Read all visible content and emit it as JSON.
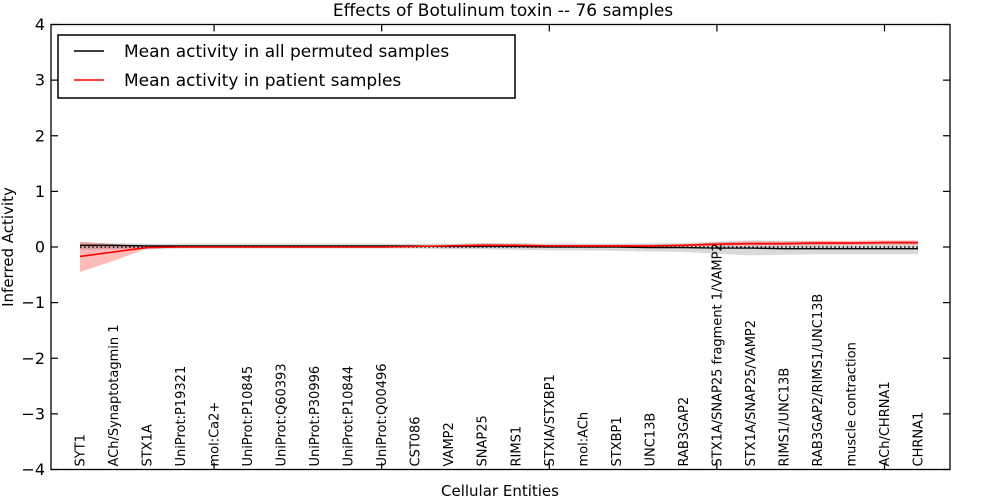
{
  "title": "Effects of Botulinum toxin -- 76 samples",
  "legend": {
    "items": [
      {
        "label": "Mean activity in all permuted samples",
        "color": "#000000"
      },
      {
        "label": "Mean activity in patient samples",
        "color": "#ff0000"
      }
    ]
  },
  "chart_data": {
    "type": "line",
    "title": "Effects of Botulinum toxin -- 76 samples",
    "xlabel": "Cellular Entities",
    "ylabel": "Inferred Activity",
    "ylim": [
      -4,
      4
    ],
    "y_ticks": [
      4,
      3,
      2,
      1,
      0,
      -1,
      -2,
      -3,
      -4
    ],
    "x_major_tick_indices": [
      4,
      9,
      14,
      19,
      24
    ],
    "grid": false,
    "legend_position": "upper left",
    "zero_reference_line": {
      "y": 0,
      "style": "dotted",
      "color": "#000000"
    },
    "categories": [
      "SYT1",
      "ACh/Synaptotagmin 1",
      "STX1A",
      "UniProt:P19321",
      "mol:Ca2+",
      "UniProt:P10845",
      "UniProt:Q60393",
      "UniProt:P30996",
      "UniProt:P10844",
      "UniProt:Q00496",
      "CST086",
      "VAMP2",
      "SNAP25",
      "RIMS1",
      "STXIA/STXBP1",
      "mol:ACh",
      "STXBP1",
      "UNC13B",
      "RAB3GAP2",
      "STX1A/SNAP25 fragment 1/VAMP2",
      "STX1A/SNAP25/VAMP2",
      "RIMS1/UNC13B",
      "RAB3GAP2/RIMS1/UNC13B",
      "muscle contraction",
      "ACh/CHRNA1",
      "CHRNA1"
    ],
    "series": [
      {
        "name": "Mean activity in all permuted samples",
        "color": "#000000",
        "line_style": "solid",
        "values": [
          0.03,
          0.03,
          0.02,
          0.02,
          0.02,
          0.02,
          0.02,
          0.02,
          0.02,
          0.02,
          0.02,
          0.01,
          0.01,
          0.01,
          0.0,
          0.0,
          0.0,
          -0.01,
          -0.01,
          -0.02,
          -0.02,
          -0.03,
          -0.03,
          -0.03,
          -0.03,
          -0.03
        ],
        "band": {
          "top": [
            0.08,
            0.07,
            0.06,
            0.06,
            0.06,
            0.06,
            0.06,
            0.06,
            0.06,
            0.06,
            0.06,
            0.06,
            0.07,
            0.07,
            0.06,
            0.06,
            0.06,
            0.07,
            0.07,
            0.1,
            0.12,
            0.11,
            0.1,
            0.09,
            0.08,
            0.08
          ],
          "bottom": [
            -0.05,
            -0.04,
            -0.04,
            -0.03,
            -0.03,
            -0.03,
            -0.03,
            -0.03,
            -0.03,
            -0.03,
            -0.03,
            -0.04,
            -0.04,
            -0.05,
            -0.06,
            -0.06,
            -0.07,
            -0.08,
            -0.09,
            -0.12,
            -0.15,
            -0.14,
            -0.13,
            -0.13,
            -0.13,
            -0.13
          ],
          "color": "rgba(0,0,0,0.15)"
        }
      },
      {
        "name": "Mean activity in patient samples",
        "color": "#ff0000",
        "line_style": "solid",
        "values": [
          -0.17,
          -0.09,
          -0.01,
          0.0,
          0.0,
          0.0,
          0.0,
          0.0,
          0.0,
          0.0,
          0.01,
          0.02,
          0.03,
          0.03,
          0.02,
          0.02,
          0.02,
          0.02,
          0.03,
          0.05,
          0.06,
          0.06,
          0.07,
          0.07,
          0.08,
          0.08
        ],
        "band": {
          "top": [
            0.1,
            0.05,
            0.01,
            0.01,
            0.01,
            0.01,
            0.01,
            0.01,
            0.01,
            0.01,
            0.02,
            0.04,
            0.06,
            0.05,
            0.04,
            0.04,
            0.04,
            0.04,
            0.05,
            0.08,
            0.1,
            0.1,
            0.11,
            0.11,
            0.12,
            0.12
          ],
          "bottom": [
            -0.45,
            -0.25,
            -0.03,
            -0.01,
            -0.01,
            -0.01,
            -0.01,
            -0.01,
            -0.01,
            -0.01,
            0.0,
            0.0,
            0.01,
            0.01,
            0.0,
            0.0,
            0.0,
            0.0,
            0.01,
            0.02,
            0.03,
            0.03,
            0.03,
            0.04,
            0.04,
            0.04
          ],
          "color": "rgba(255,0,0,0.27)"
        }
      }
    ]
  }
}
